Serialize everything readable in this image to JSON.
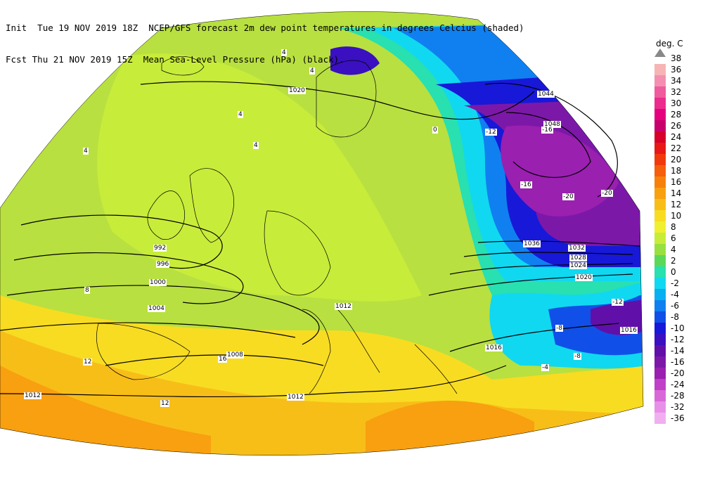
{
  "header": {
    "line1_init_label": "Init",
    "line1_init_time": "Tue 19 NOV 2019 18Z",
    "line1_product": "NCEP/GFS forecast 2m dew point temperatures in degrees Celcius (shaded)",
    "line2_fcst_label": "Fcst",
    "line2_fcst_time": "Thu 21 NOV 2019 15Z",
    "line2_product": "Mean Sea-Level Pressure (hPa) (black)."
  },
  "legend": {
    "unit": "deg. C",
    "levels": [
      {
        "label": "38",
        "color": "#9a9a9a"
      },
      {
        "label": "36",
        "color": "#f7b4b4"
      },
      {
        "label": "34",
        "color": "#f48fb1"
      },
      {
        "label": "32",
        "color": "#ef5b9c"
      },
      {
        "label": "30",
        "color": "#ec2c8c"
      },
      {
        "label": "28",
        "color": "#e5007e"
      },
      {
        "label": "26",
        "color": "#c8006c"
      },
      {
        "label": "24",
        "color": "#d6002a"
      },
      {
        "label": "22",
        "color": "#e81818"
      },
      {
        "label": "20",
        "color": "#f03a0c"
      },
      {
        "label": "18",
        "color": "#f55e0a"
      },
      {
        "label": "16",
        "color": "#f7800c"
      },
      {
        "label": "14",
        "color": "#f8a010"
      },
      {
        "label": "12",
        "color": "#f8be18"
      },
      {
        "label": "10",
        "color": "#f8dc22"
      },
      {
        "label": "8",
        "color": "#f0f030"
      },
      {
        "label": "6",
        "color": "#c8ec3a"
      },
      {
        "label": "4",
        "color": "#98e040"
      },
      {
        "label": "2",
        "color": "#5cd858"
      },
      {
        "label": "0",
        "color": "#28e0b0"
      },
      {
        "label": "-2",
        "color": "#10d8f0"
      },
      {
        "label": "-4",
        "color": "#08b0f0"
      },
      {
        "label": "-6",
        "color": "#1080f0"
      },
      {
        "label": "-8",
        "color": "#1050e8"
      },
      {
        "label": "-10",
        "color": "#1818d8"
      },
      {
        "label": "-12",
        "color": "#3a10c0"
      },
      {
        "label": "-14",
        "color": "#6010a8"
      },
      {
        "label": "-16",
        "color": "#7c18a8"
      },
      {
        "label": "-20",
        "color": "#9a20b0"
      },
      {
        "label": "-24",
        "color": "#c040c8"
      },
      {
        "label": "-28",
        "color": "#d868d8"
      },
      {
        "label": "-32",
        "color": "#e890e8"
      },
      {
        "label": "-36",
        "color": "#f0b0f0"
      }
    ]
  },
  "isobar_labels": [
    "1020",
    "992",
    "996",
    "1000",
    "1004",
    "1008",
    "1012",
    "1012",
    "1012",
    "1016",
    "1016",
    "1020",
    "1024",
    "1028",
    "1032",
    "1036",
    "1044",
    "1048"
  ],
  "field_labels": [
    "4",
    "4",
    "4",
    "4",
    "4",
    "0",
    "8",
    "12",
    "-12",
    "-16",
    "-16",
    "-20",
    "-20",
    "-12",
    "-8",
    "-4",
    "12",
    "16",
    "-8"
  ]
}
